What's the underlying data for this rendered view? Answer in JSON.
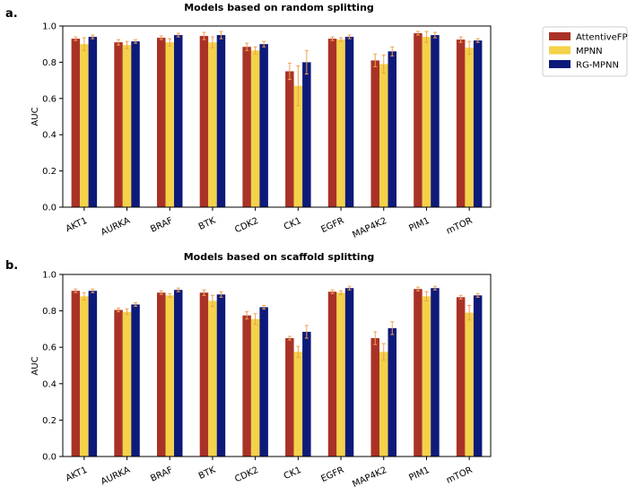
{
  "chart_data": [
    {
      "type": "bar",
      "panel_label": "a.",
      "title": "Models based on random splitting",
      "xlabel": "",
      "ylabel": "AUC",
      "ylim": [
        0,
        1.0
      ],
      "yticks": [
        "0.0",
        "0.2",
        "0.4",
        "0.6",
        "0.8",
        "1.0"
      ],
      "categories": [
        "AKT1",
        "AURKA",
        "BRAF",
        "BTK",
        "CDK2",
        "CK1",
        "EGFR",
        "MAP4K2",
        "PIM1",
        "mTOR"
      ],
      "series": [
        {
          "name": "AttentiveFP",
          "color": "#a93226",
          "values": [
            0.93,
            0.91,
            0.935,
            0.945,
            0.885,
            0.75,
            0.93,
            0.81,
            0.96,
            0.925
          ],
          "errors": [
            0.01,
            0.015,
            0.01,
            0.02,
            0.02,
            0.045,
            0.01,
            0.035,
            0.01,
            0.015
          ]
        },
        {
          "name": "MPNN",
          "color": "#f4d24a",
          "values": [
            0.9,
            0.895,
            0.91,
            0.91,
            0.865,
            0.67,
            0.925,
            0.79,
            0.94,
            0.88
          ],
          "errors": [
            0.035,
            0.02,
            0.02,
            0.03,
            0.02,
            0.11,
            0.01,
            0.05,
            0.03,
            0.035
          ]
        },
        {
          "name": "RG-MPNN",
          "color": "#0d1a7a",
          "values": [
            0.94,
            0.915,
            0.95,
            0.95,
            0.9,
            0.8,
            0.94,
            0.86,
            0.95,
            0.92
          ],
          "errors": [
            0.01,
            0.01,
            0.01,
            0.02,
            0.015,
            0.065,
            0.01,
            0.025,
            0.015,
            0.01
          ]
        }
      ],
      "legend": "top-right, outside plot"
    },
    {
      "type": "bar",
      "panel_label": "b.",
      "title": "Models based on scaffold splitting",
      "xlabel": "",
      "ylabel": "AUC",
      "ylim": [
        0,
        1.0
      ],
      "yticks": [
        "0.0",
        "0.2",
        "0.4",
        "0.6",
        "0.8",
        "1.0"
      ],
      "categories": [
        "AKT1",
        "AURKA",
        "BRAF",
        "BTK",
        "CDK2",
        "CK1",
        "EGFR",
        "MAP4K2",
        "PIM1",
        "mTOR"
      ],
      "series": [
        {
          "name": "AttentiveFP",
          "color": "#a93226",
          "values": [
            0.91,
            0.805,
            0.9,
            0.9,
            0.775,
            0.65,
            0.905,
            0.65,
            0.92,
            0.875
          ],
          "errors": [
            0.01,
            0.01,
            0.01,
            0.015,
            0.02,
            0.01,
            0.01,
            0.035,
            0.01,
            0.01
          ]
        },
        {
          "name": "MPNN",
          "color": "#f4d24a",
          "values": [
            0.88,
            0.795,
            0.885,
            0.855,
            0.755,
            0.575,
            0.9,
            0.575,
            0.88,
            0.79
          ],
          "errors": [
            0.02,
            0.015,
            0.01,
            0.03,
            0.03,
            0.03,
            0.01,
            0.045,
            0.025,
            0.04
          ]
        },
        {
          "name": "RG-MPNN",
          "color": "#0d1a7a",
          "values": [
            0.91,
            0.835,
            0.915,
            0.89,
            0.82,
            0.685,
            0.925,
            0.705,
            0.925,
            0.885
          ],
          "errors": [
            0.01,
            0.01,
            0.01,
            0.015,
            0.01,
            0.035,
            0.01,
            0.035,
            0.01,
            0.01
          ]
        }
      ],
      "legend": "top-right, outside plot"
    }
  ]
}
